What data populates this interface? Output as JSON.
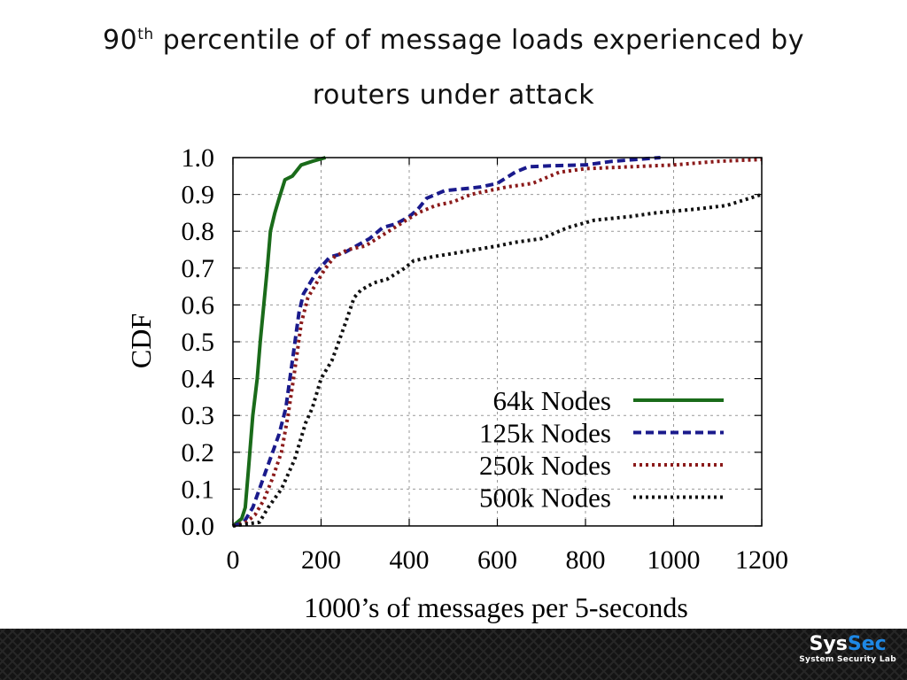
{
  "slide": {
    "title_line1_prefix": "90",
    "title_line1_sup": "th",
    "title_line1_rest": " percentile of of message loads experienced by",
    "title_line2": "routers under attack"
  },
  "chart_data": {
    "type": "line",
    "xlabel": "1000’s of messages per 5-seconds",
    "ylabel": "CDF",
    "xlim": [
      0,
      1200
    ],
    "ylim": [
      0.0,
      1.0
    ],
    "xticks": [
      "0",
      "200",
      "400",
      "600",
      "800",
      "1000",
      "1200"
    ],
    "yticks": [
      "0.0",
      "0.1",
      "0.2",
      "0.3",
      "0.4",
      "0.5",
      "0.6",
      "0.7",
      "0.8",
      "0.9",
      "1.0"
    ],
    "grid": true,
    "legend_position": "bottom-right",
    "series": [
      {
        "name": "64k Nodes",
        "color": "#1a6b1a",
        "style": "solid",
        "x": [
          0,
          20,
          28,
          35,
          45,
          55,
          62,
          70,
          78,
          85,
          95,
          105,
          118,
          135,
          155,
          180,
          210
        ],
        "y": [
          0.0,
          0.02,
          0.05,
          0.15,
          0.3,
          0.4,
          0.5,
          0.6,
          0.7,
          0.8,
          0.85,
          0.89,
          0.94,
          0.95,
          0.98,
          0.99,
          1.0
        ]
      },
      {
        "name": "125k Nodes",
        "color": "#1a1a8c",
        "style": "dashed",
        "x": [
          0,
          25,
          45,
          60,
          75,
          90,
          105,
          120,
          135,
          150,
          160,
          175,
          190,
          205,
          220,
          250,
          280,
          310,
          340,
          370,
          400,
          420,
          440,
          480,
          520,
          560,
          600,
          640,
          670,
          720,
          800,
          860,
          970
        ],
        "y": [
          0.0,
          0.01,
          0.05,
          0.1,
          0.15,
          0.2,
          0.25,
          0.32,
          0.45,
          0.58,
          0.63,
          0.66,
          0.69,
          0.71,
          0.73,
          0.74,
          0.76,
          0.78,
          0.81,
          0.82,
          0.84,
          0.86,
          0.89,
          0.91,
          0.915,
          0.92,
          0.93,
          0.96,
          0.975,
          0.978,
          0.98,
          0.99,
          1.0
        ]
      },
      {
        "name": "250k Nodes",
        "color": "#8b1a1a",
        "style": "dotted",
        "x": [
          0,
          30,
          50,
          70,
          90,
          110,
          125,
          140,
          155,
          170,
          190,
          210,
          230,
          260,
          300,
          340,
          380,
          420,
          460,
          500,
          540,
          580,
          620,
          680,
          740,
          800,
          900,
          1000,
          1100,
          1200
        ],
        "y": [
          0.0,
          0.01,
          0.03,
          0.07,
          0.13,
          0.2,
          0.3,
          0.42,
          0.55,
          0.62,
          0.66,
          0.7,
          0.73,
          0.75,
          0.76,
          0.79,
          0.82,
          0.85,
          0.87,
          0.88,
          0.9,
          0.91,
          0.92,
          0.93,
          0.96,
          0.97,
          0.975,
          0.98,
          0.99,
          0.995
        ]
      },
      {
        "name": "500k Nodes",
        "color": "#111111",
        "style": "dotted",
        "x": [
          0,
          60,
          80,
          110,
          140,
          165,
          180,
          200,
          225,
          255,
          275,
          290,
          320,
          350,
          390,
          410,
          450,
          500,
          550,
          600,
          640,
          700,
          760,
          820,
          900,
          960,
          1050,
          1120,
          1200
        ],
        "y": [
          0.0,
          0.01,
          0.05,
          0.1,
          0.18,
          0.28,
          0.32,
          0.4,
          0.45,
          0.55,
          0.62,
          0.64,
          0.66,
          0.67,
          0.7,
          0.72,
          0.73,
          0.74,
          0.75,
          0.76,
          0.77,
          0.78,
          0.81,
          0.83,
          0.84,
          0.85,
          0.86,
          0.87,
          0.9
        ]
      }
    ]
  },
  "logo": {
    "name_part1": "Sys",
    "name_part2": "Sec",
    "subtitle": "System Security Lab"
  }
}
